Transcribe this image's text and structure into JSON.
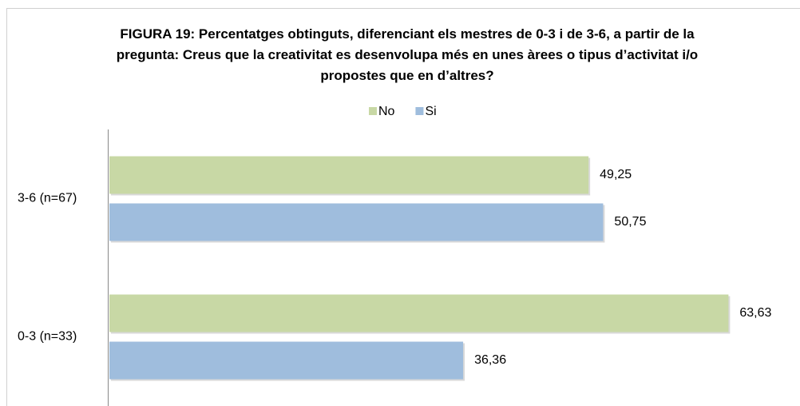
{
  "chart_data": {
    "type": "barh",
    "title": "FIGURA 19: Percentatges obtinguts, diferenciant els mestres de 0-3 i de 3-6, a partir de la pregunta: Creus que la creativitat es desenvolupa més en unes àrees o tipus d’activitat i/o propostes que en d’altres?",
    "categories": [
      "3-6 (n=67)",
      "0-3 (n=33)"
    ],
    "series": [
      {
        "name": "No",
        "color": "#c8d8a5",
        "values": [
          49.25,
          63.63
        ],
        "value_labels": [
          "49,25",
          "63,63"
        ]
      },
      {
        "name": "Si",
        "color": "#9fbddd",
        "values": [
          50.75,
          36.36
        ],
        "value_labels": [
          "50,75",
          "36,36"
        ]
      }
    ],
    "xlim": [
      0,
      70
    ],
    "legend": "top"
  }
}
